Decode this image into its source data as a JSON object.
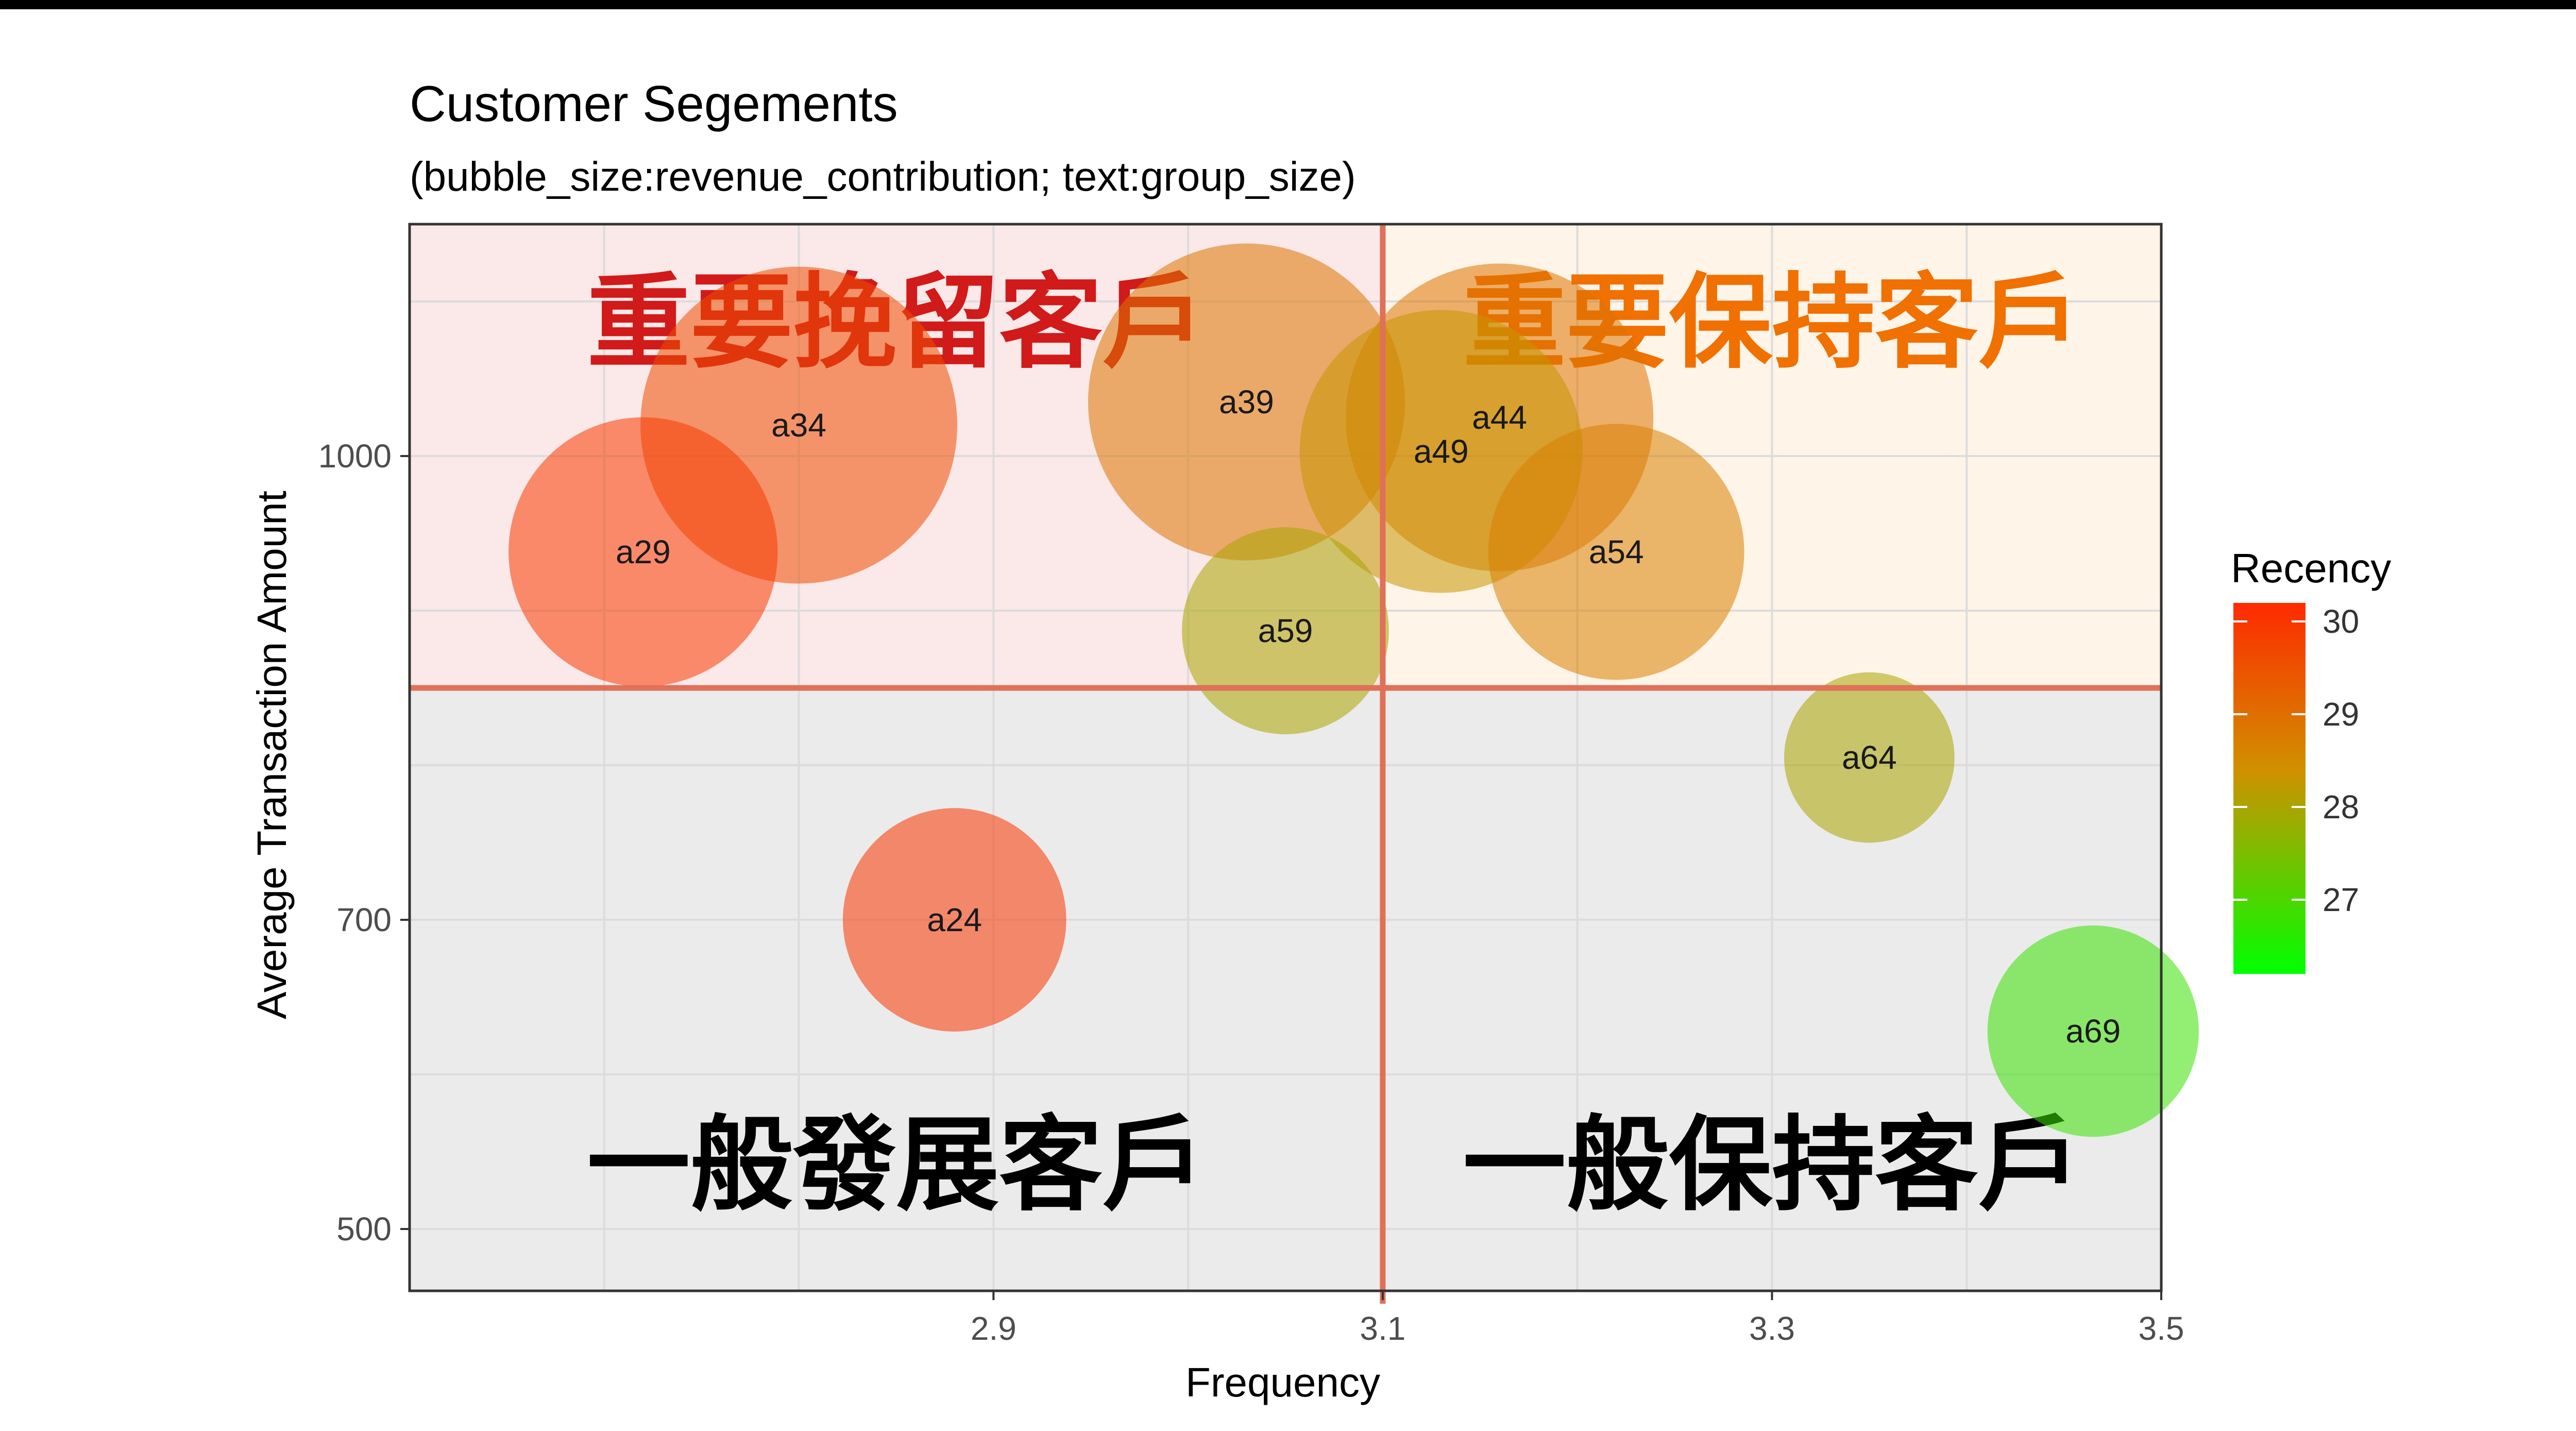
{
  "chart_data": {
    "type": "scatter",
    "title": "Customer Segements",
    "subtitle": "(bubble_size:revenue_contribution; text:group_size)",
    "xlabel": "Frequency",
    "ylabel": "Average Transaction Amount",
    "xlim": [
      2.6,
      3.5
    ],
    "ylim": [
      460,
      1150
    ],
    "xticks": [
      2.9,
      3.1,
      3.3,
      3.5
    ],
    "yticks": [
      500,
      700,
      1000
    ],
    "x_divider": 3.1,
    "y_divider": 850,
    "legend": {
      "title": "Recency",
      "ticks": [
        27,
        28,
        29,
        30
      ],
      "position": "right",
      "range": [
        26.2,
        30.2
      ]
    },
    "colors": {
      "high": "#ff2a00",
      "mid": "#d09000",
      "low": "#00ff00",
      "quad_top_left": "#fbe8e8",
      "quad_top_right": "#fff4e8",
      "quad_bottom": "#ebebeb",
      "divider": "#e07058"
    },
    "points": [
      {
        "label": "a34",
        "x": 2.8,
        "y": 1020,
        "size": 1.0,
        "recency": 29.6
      },
      {
        "label": "a29",
        "x": 2.72,
        "y": 938,
        "size": 0.62,
        "recency": 29.9
      },
      {
        "label": "a39",
        "x": 3.03,
        "y": 1035,
        "size": 1.0,
        "recency": 28.9
      },
      {
        "label": "a59",
        "x": 3.05,
        "y": 887,
        "size": 0.26,
        "recency": 28.0
      },
      {
        "label": "a24",
        "x": 2.88,
        "y": 700,
        "size": 0.34,
        "recency": 30.0
      },
      {
        "label": "a44",
        "x": 3.16,
        "y": 1025,
        "size": 0.92,
        "recency": 28.9
      },
      {
        "label": "a49",
        "x": 3.13,
        "y": 1003,
        "size": 0.72,
        "recency": 28.3
      },
      {
        "label": "a54",
        "x": 3.22,
        "y": 938,
        "size": 0.53,
        "recency": 28.7
      },
      {
        "label": "a64",
        "x": 3.35,
        "y": 805,
        "size": 0.12,
        "recency": 28.0
      },
      {
        "label": "a69",
        "x": 3.465,
        "y": 628,
        "size": 0.28,
        "recency": 26.8
      }
    ],
    "quadrants": [
      {
        "label": "重要挽留客戶",
        "position": "top-left",
        "color": "#d11a1a"
      },
      {
        "label": "重要保持客戶",
        "position": "top-right",
        "color": "#f07000"
      },
      {
        "label": "一般發展客戶",
        "position": "bottom-left",
        "color": "#000000"
      },
      {
        "label": "一般保持客戶",
        "position": "bottom-right",
        "color": "#000000"
      }
    ]
  }
}
